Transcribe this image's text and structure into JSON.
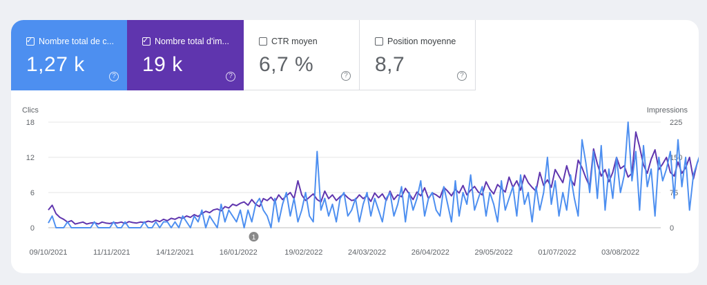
{
  "metrics": [
    {
      "label": "Nombre total de c...",
      "value": "1,27 k",
      "checked": true,
      "help": "?"
    },
    {
      "label": "Nombre total d'im...",
      "value": "19 k",
      "checked": true,
      "help": "?"
    },
    {
      "label": "CTR moyen",
      "value": "6,7 %",
      "checked": false,
      "help": "?"
    },
    {
      "label": "Position moyenne",
      "value": "8,7",
      "checked": false,
      "help": "?"
    }
  ],
  "colors": {
    "clicks": "#4d8ff0",
    "impressions": "#5f35ae",
    "axis": "#5f6368",
    "grid": "#e6e6e6"
  },
  "chart_data": {
    "type": "line",
    "ylabel_left": "Clics",
    "ylabel_right": "Impressions",
    "yticks_left": [
      "0",
      "6",
      "12",
      "18"
    ],
    "yticks_right": [
      "0",
      "75",
      "150",
      "225"
    ],
    "ylim_left": [
      0,
      18
    ],
    "ylim_right": [
      0,
      225
    ],
    "grid": true,
    "x_tick_labels": [
      "09/10/2021",
      "11/11/2021",
      "14/12/2021",
      "16/01/2022",
      "19/02/2022",
      "24/03/2022",
      "26/04/2022",
      "29/05/2022",
      "01/07/2022",
      "03/08/2022"
    ],
    "x_range": [
      "2021-10-09",
      "2022-08-24"
    ],
    "annotation": {
      "label": "1",
      "date": "2022-01-24"
    },
    "series": [
      {
        "name": "Clics",
        "axis": "left",
        "color": "#4d8ff0",
        "resolution_days": 2,
        "values": [
          0.8,
          2,
          0,
          0,
          0,
          1,
          0,
          0,
          0,
          0,
          0,
          0,
          1,
          0,
          0,
          0,
          0,
          1,
          0,
          0,
          1,
          0,
          0,
          0,
          0,
          1,
          0,
          0,
          1,
          0,
          1,
          1,
          0,
          1,
          0,
          2,
          1,
          0,
          2,
          1,
          3,
          0,
          2,
          1,
          0,
          4,
          1,
          3,
          2,
          1,
          3,
          0,
          3,
          1,
          4,
          5,
          3,
          2,
          0,
          5,
          1,
          4,
          6,
          2,
          5,
          1,
          3,
          6,
          2,
          1,
          13,
          3,
          5,
          2,
          4,
          1,
          5,
          6,
          2,
          3,
          5,
          1,
          4,
          6,
          2,
          5,
          3,
          1,
          5,
          6,
          2,
          4,
          7,
          1,
          6,
          3,
          5,
          8,
          2,
          5,
          6,
          3,
          2,
          7,
          4,
          1,
          8,
          2,
          6,
          4,
          9,
          3,
          5,
          7,
          2,
          6,
          4,
          1,
          8,
          3,
          5,
          7,
          2,
          9,
          4,
          6,
          1,
          7,
          3,
          6,
          12,
          4,
          8,
          2,
          6,
          3,
          9,
          5,
          2,
          15,
          11,
          6,
          13,
          5,
          14,
          3,
          10,
          5,
          12,
          6,
          9,
          18,
          8,
          13,
          3,
          14,
          7,
          10,
          2,
          12,
          8,
          10,
          13,
          5,
          15,
          7,
          12,
          3,
          9,
          11,
          13,
          4,
          12,
          6,
          10,
          17,
          9,
          5,
          12,
          10,
          4,
          6
        ]
      },
      {
        "name": "Impressions",
        "axis": "right",
        "color": "#5f35ae",
        "resolution_days": 2,
        "values": [
          38,
          48,
          30,
          22,
          18,
          12,
          15,
          8,
          10,
          12,
          8,
          10,
          11,
          8,
          12,
          10,
          9,
          11,
          10,
          12,
          9,
          13,
          11,
          10,
          12,
          11,
          14,
          12,
          16,
          13,
          18,
          15,
          20,
          18,
          22,
          20,
          25,
          22,
          28,
          24,
          30,
          35,
          32,
          38,
          40,
          36,
          45,
          42,
          50,
          47,
          52,
          55,
          48,
          60,
          50,
          45,
          62,
          58,
          65,
          55,
          70,
          60,
          68,
          75,
          62,
          100,
          70,
          58,
          65,
          72,
          60,
          55,
          78,
          62,
          70,
          58,
          66,
          72,
          64,
          58,
          60,
          70,
          62,
          68,
          56,
          74,
          64,
          72,
          58,
          78,
          60,
          70,
          66,
          84,
          72,
          60,
          76,
          68,
          85,
          62,
          74,
          70,
          64,
          86,
          78,
          68,
          82,
          74,
          90,
          70,
          80,
          88,
          76,
          70,
          98,
          82,
          72,
          92,
          84,
          76,
          108,
          86,
          100,
          80,
          112,
          96,
          86,
          78,
          118,
          90,
          102,
          86,
          124,
          110,
          96,
          132,
          104,
          90,
          144,
          128,
          106,
          88,
          168,
          136,
          110,
          124,
          98,
          118,
          150,
          126,
          132,
          108,
          116,
          204,
          172,
          134,
          116,
          146,
          166,
          124,
          136,
          150,
          118,
          110,
          140,
          116,
          128,
          150,
          104,
          138,
          160,
          126,
          114,
          132,
          140,
          102,
          122,
          96,
          110,
          96,
          82,
          58
        ]
      }
    ]
  }
}
